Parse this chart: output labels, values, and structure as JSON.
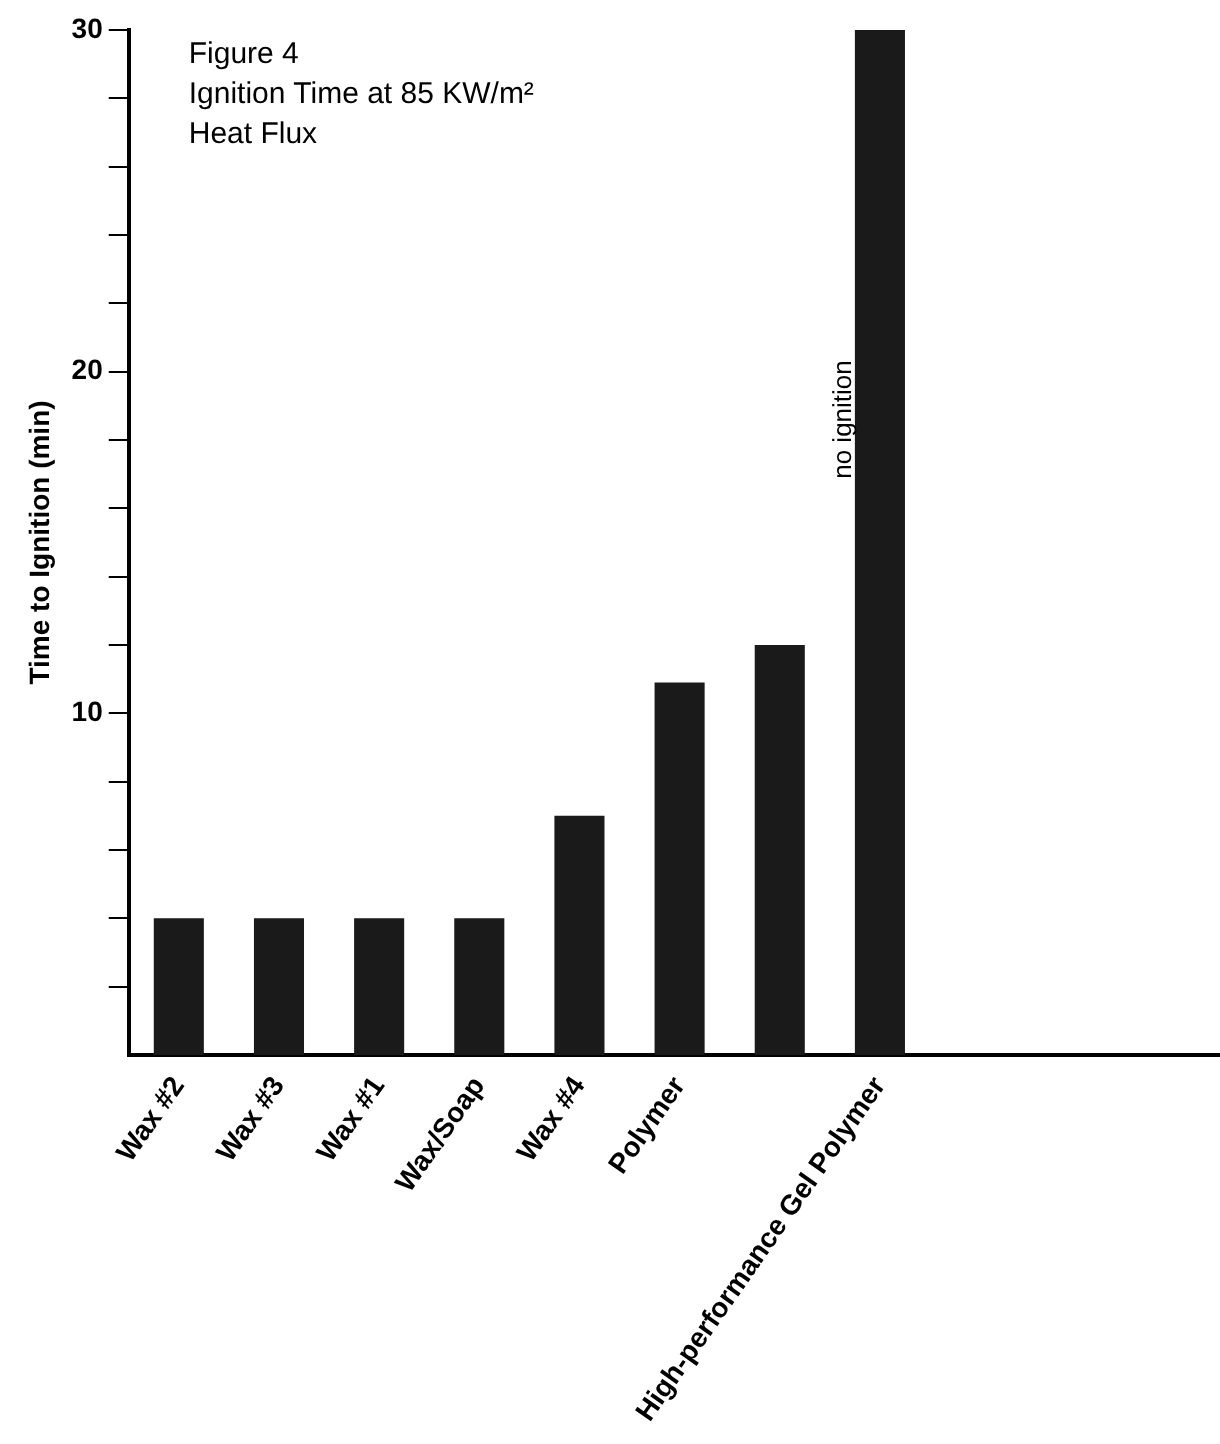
{
  "chart_data": {
    "type": "bar",
    "title": "Figure 4\nIgnition Time at 85 KW/m²\nHeat Flux",
    "ylabel": "Time to Ignition (min)",
    "categories": [
      "Wax #2",
      "Wax #3",
      "Wax #1",
      "Wax/Soap",
      "Wax #4",
      "Polymer",
      null,
      "High-performance Gel Polymer"
    ],
    "values": [
      4,
      4,
      4,
      4,
      7,
      10.9,
      12,
      30
    ],
    "color": "#1a1a1a",
    "ylim": [
      0,
      30
    ],
    "yticks": [
      {
        "value": 2,
        "label": null
      },
      {
        "value": 4,
        "label": null
      },
      {
        "value": 6,
        "label": null
      },
      {
        "value": 8,
        "label": null
      },
      10,
      {
        "value": 12,
        "label": null
      },
      {
        "value": 14,
        "label": null
      },
      {
        "value": 16,
        "label": null
      },
      {
        "value": 18,
        "label": null
      },
      20,
      {
        "value": 22,
        "label": null
      },
      {
        "value": 24,
        "label": null
      },
      {
        "value": 26,
        "label": null
      },
      {
        "value": 28,
        "label": null
      },
      30
    ],
    "annotations": [
      "no ignition"
    ],
    "grid": false,
    "legend": false
  }
}
